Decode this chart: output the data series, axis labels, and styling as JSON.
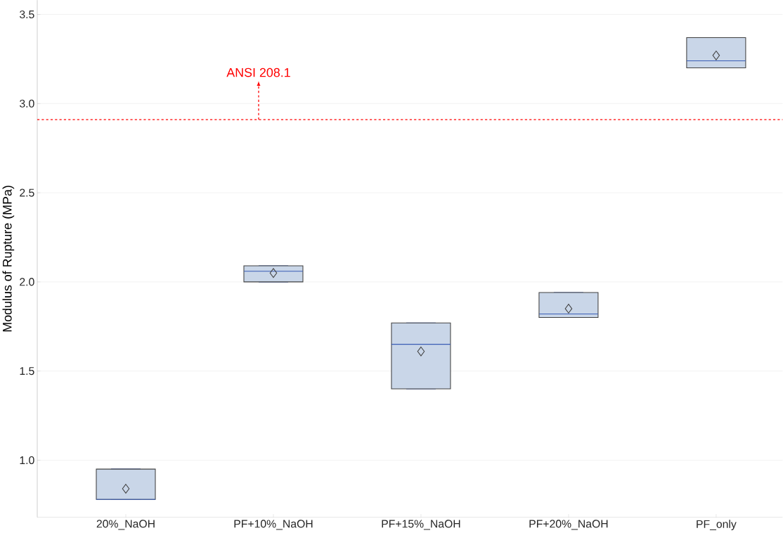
{
  "chart_data": {
    "type": "box",
    "ylabel": "Modulus of Rupture (MPa)",
    "categories": [
      "20%_NaOH",
      "PF+10%_NaOH",
      "PF+15%_NaOH",
      "PF+20%_NaOH",
      "PF_only"
    ],
    "boxes": [
      {
        "low": 0.78,
        "q1": 0.78,
        "median": 0.78,
        "q3": 0.95,
        "high": 0.95,
        "mean": 0.84
      },
      {
        "low": 2.0,
        "q1": 2.0,
        "median": 2.06,
        "q3": 2.09,
        "high": 2.09,
        "mean": 2.05
      },
      {
        "low": 1.4,
        "q1": 1.4,
        "median": 1.65,
        "q3": 1.77,
        "high": 1.77,
        "mean": 1.61
      },
      {
        "low": 1.8,
        "q1": 1.8,
        "median": 1.82,
        "q3": 1.94,
        "high": 1.94,
        "mean": 1.85
      },
      {
        "low": 3.2,
        "q1": 3.2,
        "median": 3.24,
        "q3": 3.37,
        "high": 3.37,
        "mean": 3.27
      }
    ],
    "color": "#c9d6e8",
    "ylim": [
      0.68,
      3.58
    ],
    "yticks": [
      {
        "value": 1,
        "label": "1.0"
      },
      {
        "value": 1.5,
        "label": "1.5"
      },
      {
        "value": 2,
        "label": "2.0"
      },
      {
        "value": 2.5,
        "label": "2.5"
      },
      {
        "value": 3,
        "label": "3.0"
      },
      {
        "value": 3.5,
        "label": "3.5"
      }
    ],
    "grid": "y",
    "ref_lines": [
      {
        "axis": "y",
        "value": 2.91,
        "label": "ANSI 208.1",
        "color": "#ff0000",
        "line_style": "dashed"
      }
    ]
  }
}
